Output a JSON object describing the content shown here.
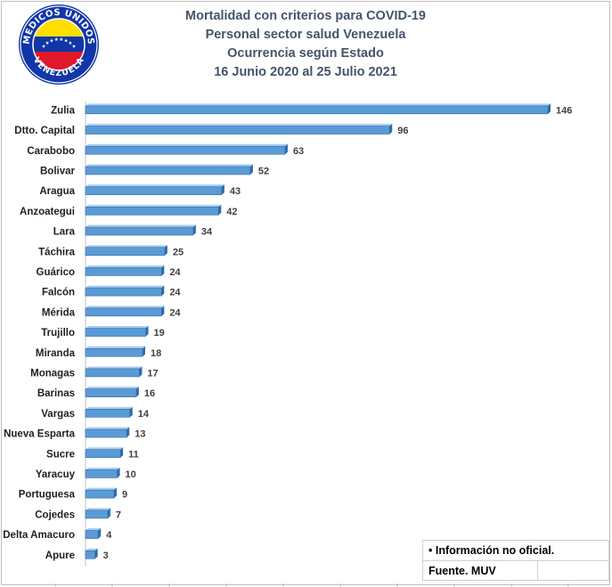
{
  "logo": {
    "text_top": "MEDICOS UNIDOS",
    "text_bottom": "VENEZUELA",
    "colors": {
      "yellow": "#ffde00",
      "blue": "#1036a8",
      "red": "#e0182a",
      "ring": "#1036a8"
    }
  },
  "title_lines": [
    "Mortalidad con criterios para COVID-19",
    "Personal sector salud Venezuela",
    "Ocurrencia según Estado",
    "16 Junio 2020 al 25 Julio 2021"
  ],
  "notes": {
    "info": "Información no oficial.",
    "bullet": "•",
    "source": "Fuente. MUV"
  },
  "chart_data": {
    "type": "bar",
    "orientation": "horizontal",
    "title": "Mortalidad con criterios para COVID-19 Personal sector salud Venezuela Ocurrencia según Estado 16 Junio 2020 al 25 Julio 2021",
    "categories": [
      "Zulia",
      "Dtto. Capital",
      "Carabobo",
      "Bolivar",
      "Aragua",
      "Anzoategui",
      "Lara",
      "Táchira",
      "Guárico",
      "Falcón",
      "Mérida",
      "Trujillo",
      "Miranda",
      "Monagas",
      "Barinas",
      "Vargas",
      "Nueva Esparta",
      "Sucre",
      "Yaracuy",
      "Portuguesa",
      "Cojedes",
      "Delta Amacuro",
      "Apure"
    ],
    "values": [
      146,
      96,
      63,
      52,
      43,
      42,
      34,
      25,
      24,
      24,
      24,
      19,
      18,
      17,
      16,
      14,
      13,
      11,
      10,
      9,
      7,
      4,
      3
    ],
    "xlim": [
      0,
      160
    ],
    "grid": false,
    "legend": "none",
    "colors": {
      "bar": "#5b9bd5",
      "bar_dark": "#2e6cab",
      "bar_light": "#a9cdf0",
      "axis": "#bfbfbf"
    }
  }
}
